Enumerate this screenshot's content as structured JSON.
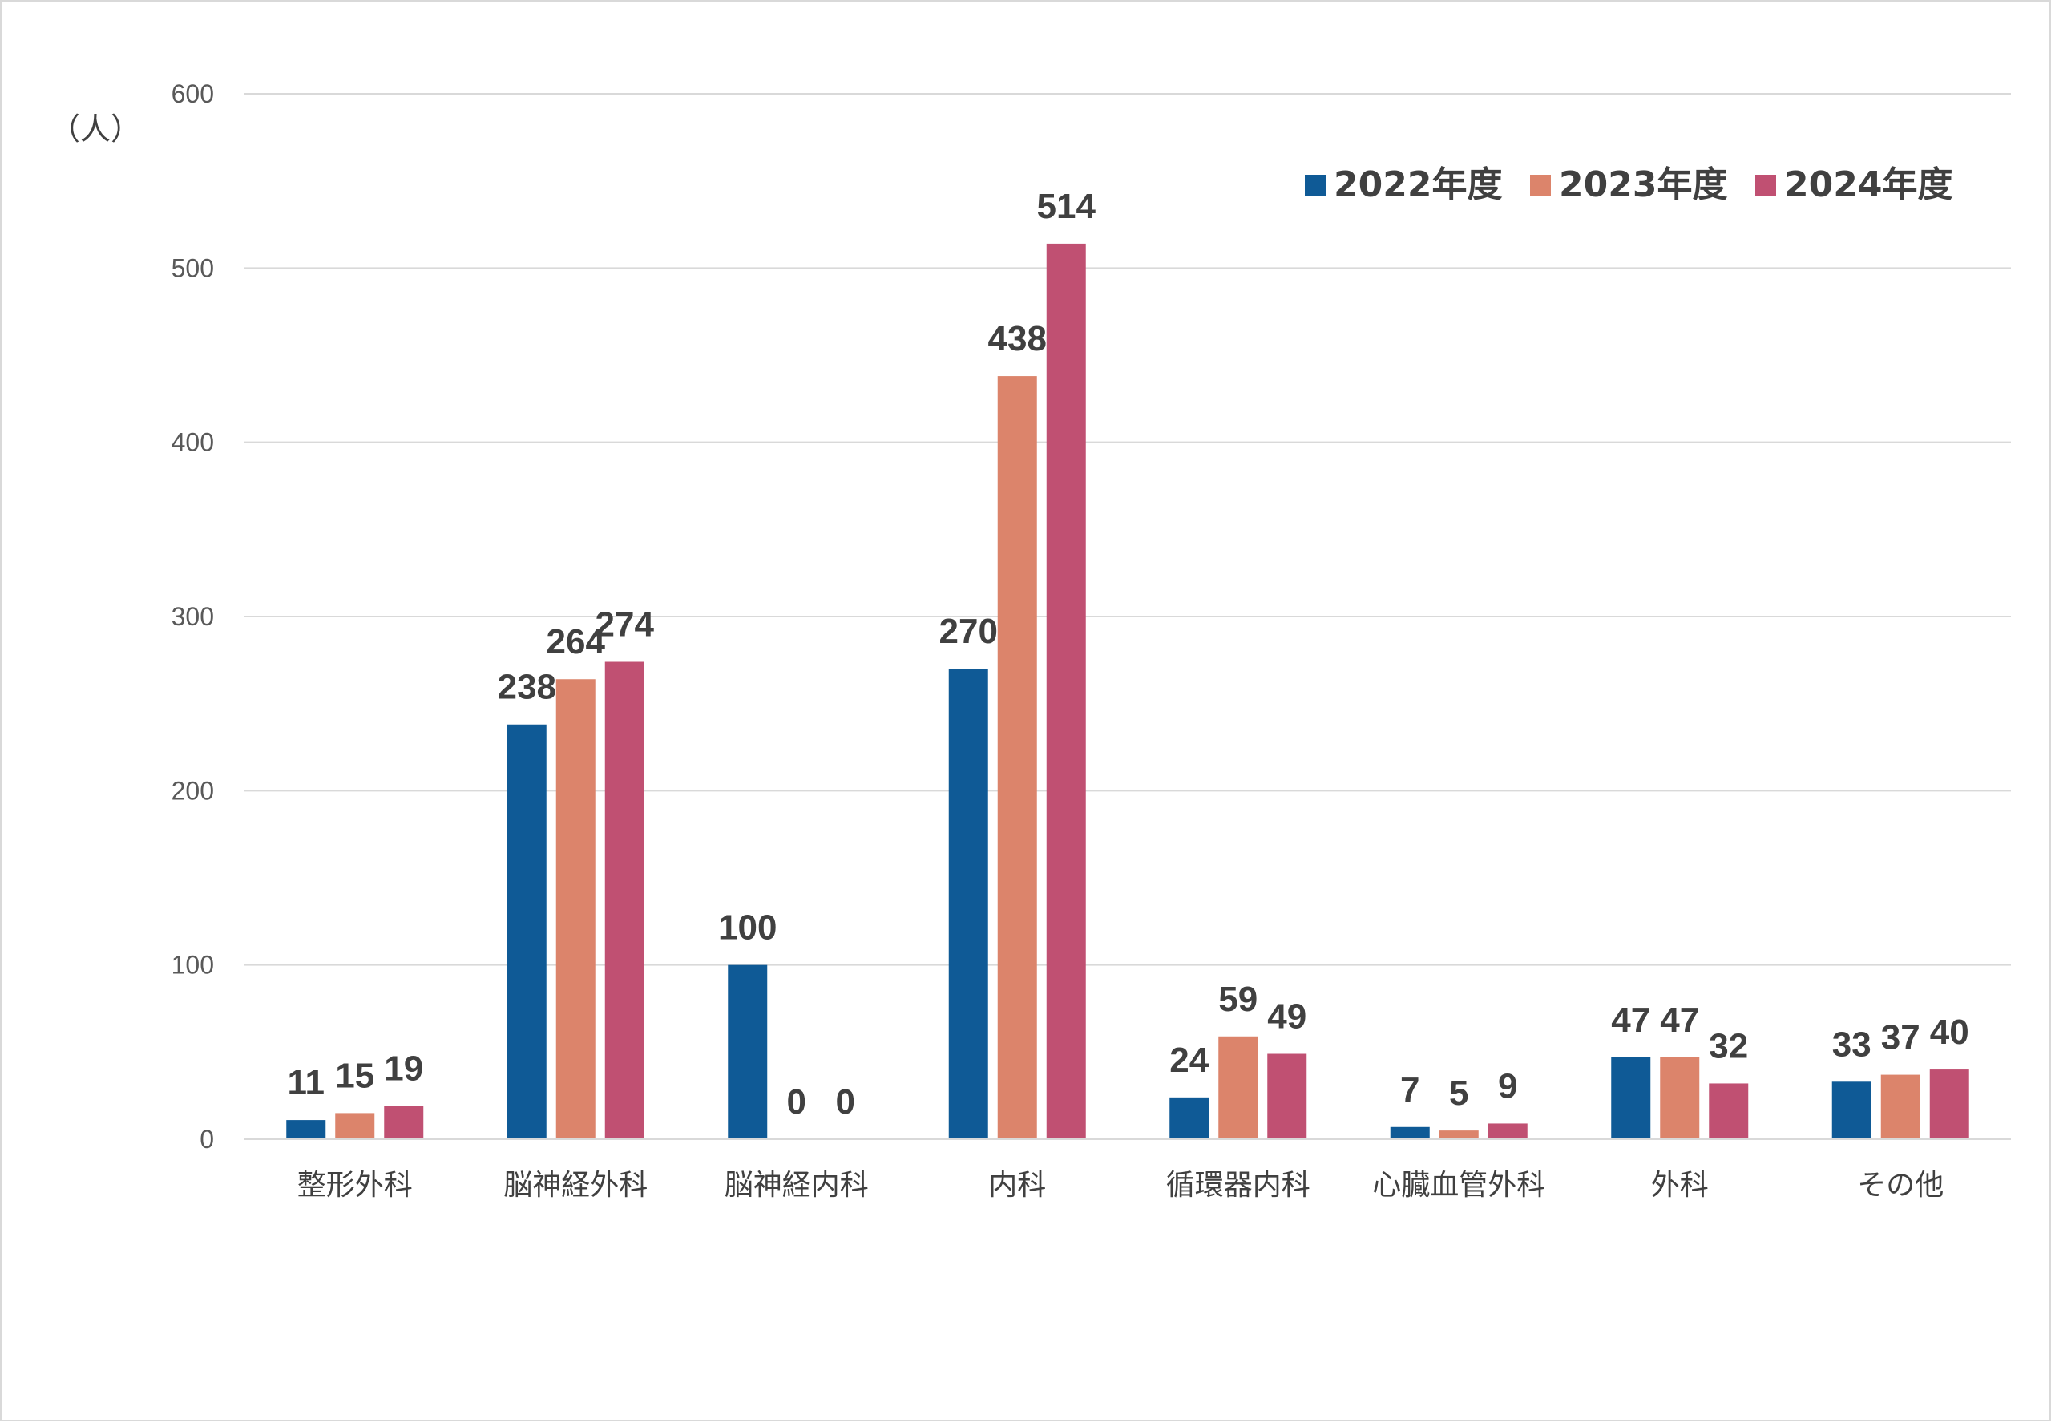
{
  "chart_data": {
    "type": "bar",
    "unit_label": "（人）",
    "categories": [
      "整形外科",
      "脳神経外科",
      "脳神経内科",
      "内科",
      "循環器内科",
      "心臓血管外科",
      "外科",
      "その他"
    ],
    "series": [
      {
        "name": "2022年度",
        "color": "#0f5a96",
        "values": [
          11,
          238,
          100,
          270,
          24,
          7,
          47,
          33
        ]
      },
      {
        "name": "2023年度",
        "color": "#dc846b",
        "values": [
          15,
          264,
          0,
          438,
          59,
          5,
          47,
          37
        ]
      },
      {
        "name": "2024年度",
        "color": "#c05072",
        "values": [
          19,
          274,
          0,
          514,
          49,
          9,
          32,
          40
        ]
      }
    ],
    "ylim": [
      0,
      600
    ],
    "yticks": [
      0,
      100,
      200,
      300,
      400,
      500,
      600
    ],
    "grid": true,
    "legend_position": "top-right",
    "gridline_color": "#d9d9d9"
  }
}
